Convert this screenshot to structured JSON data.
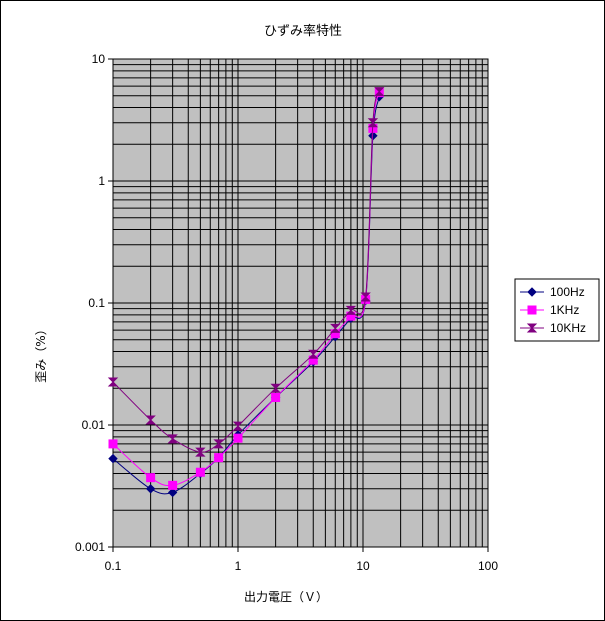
{
  "chart_data": {
    "type": "line",
    "title": "ひずみ率特性",
    "xlabel": "出力電圧（Ｖ）",
    "ylabel": "歪み（%）",
    "x_scale": "log",
    "y_scale": "log",
    "xlim": [
      0.1,
      100
    ],
    "ylim": [
      0.001,
      10
    ],
    "x_ticks": [
      "0.1",
      "1",
      "10",
      "100"
    ],
    "y_ticks": [
      "0.001",
      "0.01",
      "0.1",
      "1",
      "10"
    ],
    "grid": true,
    "legend": "right",
    "series": [
      {
        "name": "100Hz",
        "color": "#000080",
        "marker": "diamond",
        "points": [
          [
            0.1,
            0.0053
          ],
          [
            0.2,
            0.003
          ],
          [
            0.3,
            0.0028
          ],
          [
            0.5,
            0.004
          ],
          [
            0.7,
            0.0054
          ],
          [
            1.0,
            0.0083
          ],
          [
            2.0,
            0.0168
          ],
          [
            4.0,
            0.033
          ],
          [
            6.0,
            0.053
          ],
          [
            8.0,
            0.075
          ],
          [
            10.5,
            0.105
          ],
          [
            12.0,
            2.35
          ],
          [
            13.5,
            4.9
          ]
        ]
      },
      {
        "name": "1KHz",
        "color": "#ff00ff",
        "marker": "square",
        "points": [
          [
            0.1,
            0.007
          ],
          [
            0.2,
            0.0037
          ],
          [
            0.3,
            0.0032
          ],
          [
            0.5,
            0.0041
          ],
          [
            0.7,
            0.0054
          ],
          [
            1.0,
            0.0078
          ],
          [
            2.0,
            0.0168
          ],
          [
            4.0,
            0.034
          ],
          [
            6.0,
            0.056
          ],
          [
            8.0,
            0.078
          ],
          [
            10.5,
            0.107
          ],
          [
            12.0,
            2.7
          ],
          [
            13.5,
            5.3
          ]
        ]
      },
      {
        "name": "10KHz",
        "color": "#800080",
        "marker": "hourglass",
        "points": [
          [
            0.1,
            0.0225
          ],
          [
            0.2,
            0.011
          ],
          [
            0.3,
            0.0077
          ],
          [
            0.5,
            0.006
          ],
          [
            0.7,
            0.007
          ],
          [
            1.0,
            0.0098
          ],
          [
            2.0,
            0.02
          ],
          [
            4.0,
            0.038
          ],
          [
            6.0,
            0.062
          ],
          [
            8.0,
            0.087
          ],
          [
            10.5,
            0.112
          ],
          [
            12.0,
            3.0
          ],
          [
            13.5,
            5.4
          ]
        ]
      }
    ]
  }
}
